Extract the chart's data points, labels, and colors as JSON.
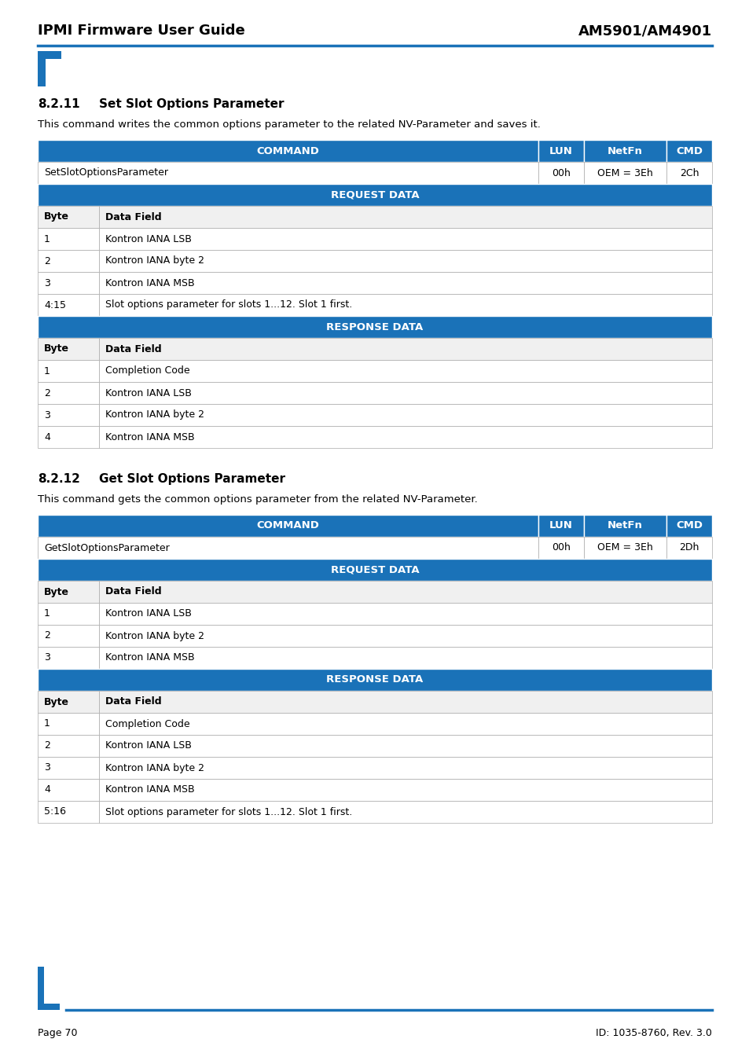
{
  "header_left": "IPMI Firmware User Guide",
  "header_right": "AM5901/AM4901",
  "footer_left": "Page 70",
  "footer_right": "ID: 1035-8760, Rev. 3.0",
  "section1_number": "8.2.11",
  "section1_title": "Set Slot Options Parameter",
  "section1_desc": "This command writes the common options parameter to the related NV-Parameter and saves it.",
  "section2_number": "8.2.12",
  "section2_title": "Get Slot Options Parameter",
  "section2_desc": "This command gets the common options parameter from the related NV-Parameter.",
  "blue": "#1a72b8",
  "white": "#ffffff",
  "black": "#000000",
  "light_gray": "#f0f0f0",
  "border_gray": "#aaaaaa",
  "table1": {
    "command_row": [
      "SetSlotOptionsParameter",
      "00h",
      "OEM = 3Eh",
      "2Ch"
    ],
    "request_rows": [
      [
        "Byte",
        "Data Field"
      ],
      [
        "1",
        "Kontron IANA LSB"
      ],
      [
        "2",
        "Kontron IANA byte 2"
      ],
      [
        "3",
        "Kontron IANA MSB"
      ],
      [
        "4:15",
        "Slot options parameter for slots 1...12. Slot 1 first."
      ]
    ],
    "response_rows": [
      [
        "Byte",
        "Data Field"
      ],
      [
        "1",
        "Completion Code"
      ],
      [
        "2",
        "Kontron IANA LSB"
      ],
      [
        "3",
        "Kontron IANA byte 2"
      ],
      [
        "4",
        "Kontron IANA MSB"
      ]
    ]
  },
  "table2": {
    "command_row": [
      "GetSlotOptionsParameter",
      "00h",
      "OEM = 3Eh",
      "2Dh"
    ],
    "request_rows": [
      [
        "Byte",
        "Data Field"
      ],
      [
        "1",
        "Kontron IANA LSB"
      ],
      [
        "2",
        "Kontron IANA byte 2"
      ],
      [
        "3",
        "Kontron IANA MSB"
      ]
    ],
    "response_rows": [
      [
        "Byte",
        "Data Field"
      ],
      [
        "1",
        "Completion Code"
      ],
      [
        "2",
        "Kontron IANA LSB"
      ],
      [
        "3",
        "Kontron IANA byte 2"
      ],
      [
        "4",
        "Kontron IANA MSB"
      ],
      [
        "5:16",
        "Slot options parameter for slots 1...12. Slot 1 first."
      ]
    ]
  }
}
